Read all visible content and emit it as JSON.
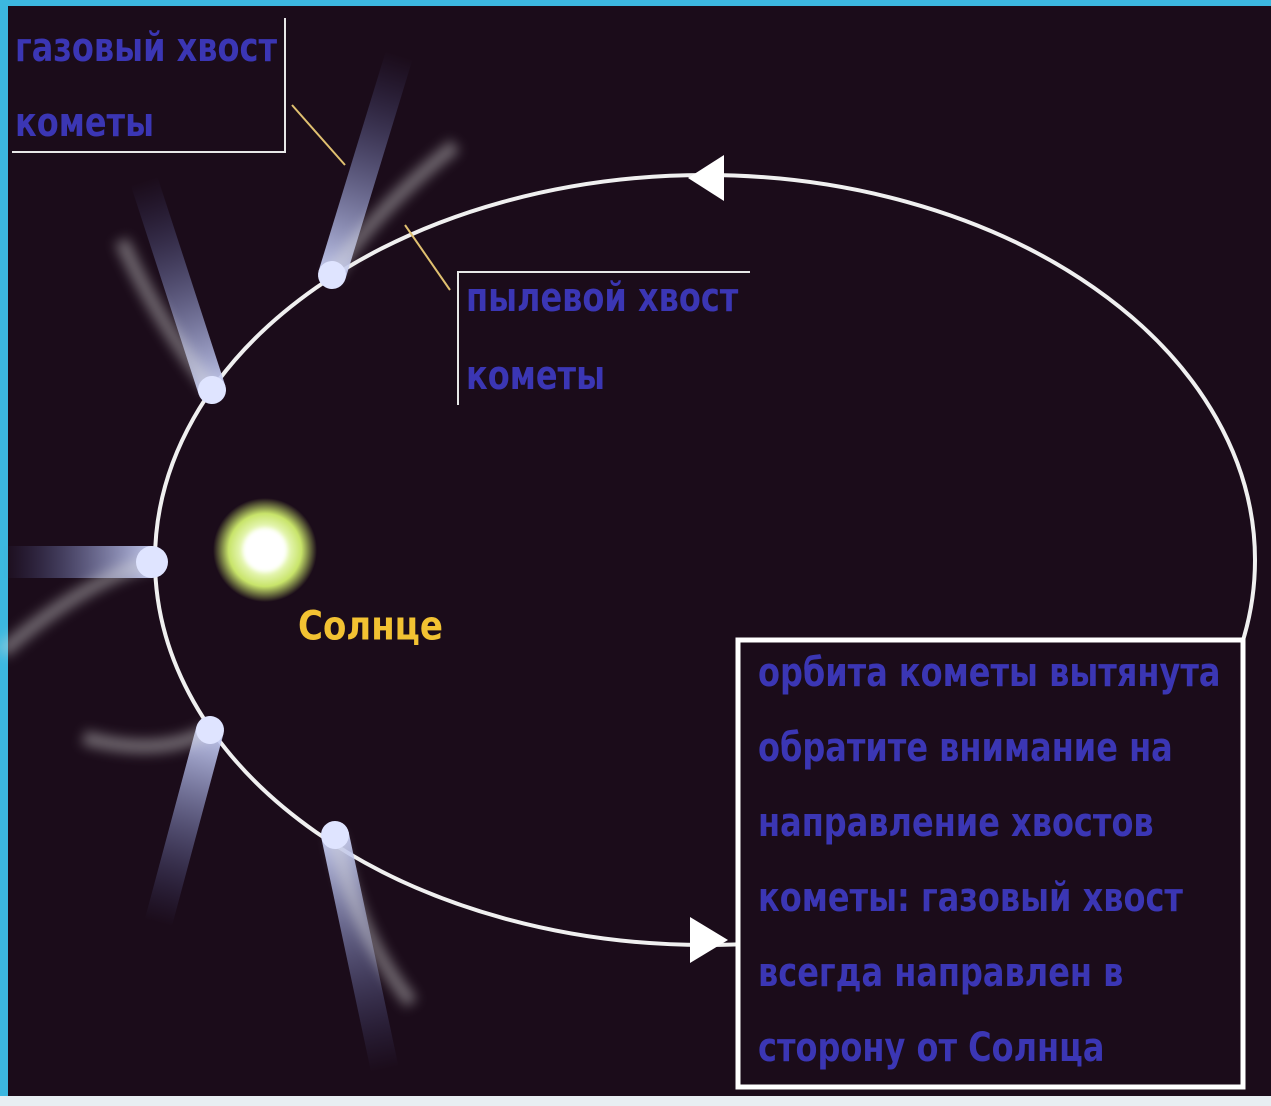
{
  "gas_tail_label": {
    "lines": [
      "газовый хвост",
      "кометы"
    ]
  },
  "dust_tail_label": {
    "lines": [
      "пылевой хвост",
      "кометы"
    ]
  },
  "sun_label": "Солнце",
  "note": {
    "lines": [
      "орбита кометы вытянута",
      "обратите внимание на",
      "направление хвостов",
      "кометы: газовый хвост",
      "всегда направлен в",
      "сторону от Солнца"
    ]
  }
}
